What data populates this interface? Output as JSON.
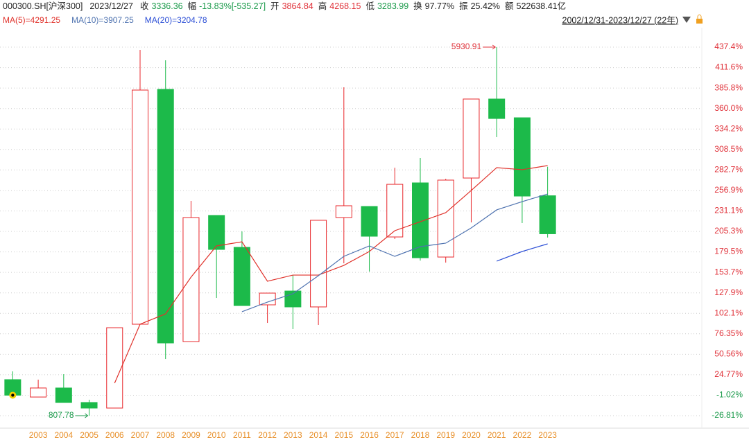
{
  "chart_data": {
    "type": "candlestick",
    "header": {
      "code": "000300.SH[沪深300]",
      "date": "2023/12/27",
      "items": [
        {
          "label": "收",
          "value": "3336.36"
        },
        {
          "label": "幅",
          "value": "-13.83%[-535.27]"
        },
        {
          "label": "开",
          "value": "3864.84"
        },
        {
          "label": "高",
          "value": "4268.15"
        },
        {
          "label": "低",
          "value": "3283.99"
        },
        {
          "label": "换",
          "value": "97.77%"
        },
        {
          "label": "振",
          "value": "25.42%"
        },
        {
          "label": "额",
          "value": "522638.41亿"
        }
      ],
      "range": "2002/12/31-2023/12/27 (22年)"
    },
    "categories": [
      null,
      "2003",
      "2004",
      "2005",
      "2006",
      "2007",
      "2008",
      "2009",
      "2010",
      "2011",
      "2012",
      "2013",
      "2014",
      "2015",
      "2016",
      "2017",
      "2018",
      "2019",
      "2020",
      "2021",
      "2022",
      "2023"
    ],
    "open": [
      18.6,
      -3.3,
      8.1,
      -10.2,
      -17.2,
      88.4,
      384.2,
      66.5,
      225.4,
      185.2,
      112.8,
      130.2,
      110.2,
      222.7,
      236.7,
      198.3,
      266.4,
      173.0,
      272.5,
      372.0,
      348.4,
      250.2
    ],
    "high": [
      29.0,
      18.6,
      25.5,
      -6.7,
      84.0,
      433.9,
      420.8,
      243.7,
      225.4,
      205.3,
      127.6,
      150.3,
      219.3,
      386.8,
      236.7,
      285.6,
      297.8,
      271.6,
      372.0,
      437.4,
      348.4,
      286.7
    ],
    "low": [
      -2.4,
      -3.3,
      -10.2,
      -26.8,
      -17.2,
      88.4,
      44.7,
      66.5,
      121.5,
      111.9,
      90.1,
      82.3,
      87.5,
      165.1,
      154.7,
      195.7,
      168.6,
      166.0,
      216.6,
      324.0,
      215.8,
      197.6
    ],
    "close": [
      -1.0,
      8.1,
      -10.2,
      -17.2,
      84.0,
      383.3,
      64.8,
      222.7,
      182.6,
      111.9,
      127.6,
      110.2,
      219.3,
      237.6,
      199.2,
      264.6,
      172.1,
      269.9,
      372.0,
      347.5,
      249.8,
      202.3
    ],
    "up_color": "#e8262a",
    "down_color": "#1cba4a",
    "series": [
      {
        "name": "MA(5)=4291.25",
        "color": "#e0322b",
        "values": [
          null,
          null,
          null,
          null,
          14.2,
          88.4,
          101.4,
          147.7,
          187.0,
          192.2,
          142.5,
          150.3,
          150.3,
          162.5,
          180.0,
          206.2,
          217.5,
          228.9,
          256.8,
          285.6,
          283.0,
          288.2
        ]
      },
      {
        "name": "MA(10)=3907.25",
        "color": "#4f73b0",
        "values": [
          null,
          null,
          null,
          null,
          null,
          null,
          null,
          null,
          null,
          104.1,
          116.3,
          126.8,
          149.5,
          173.9,
          187.0,
          173.9,
          186.1,
          190.5,
          209.7,
          232.4,
          242.8,
          252.4
        ]
      },
      {
        "name": "MA(20)=3204.78",
        "color": "#2c4fd6",
        "values": [
          null,
          null,
          null,
          null,
          null,
          null,
          null,
          null,
          null,
          null,
          null,
          null,
          null,
          null,
          null,
          null,
          null,
          null,
          null,
          167.8,
          180.0,
          189.6
        ]
      }
    ],
    "annotations": [
      {
        "text": "5930.91"
      },
      {
        "text": "807.78"
      }
    ],
    "ylim": [
      -42.5,
      466.2
    ],
    "yticks": [
      {
        "value": 437.4,
        "label": "437.4%"
      },
      {
        "value": 411.6,
        "label": "411.6%"
      },
      {
        "value": 385.8,
        "label": "385.8%"
      },
      {
        "value": 360.0,
        "label": "360.0%"
      },
      {
        "value": 334.2,
        "label": "334.2%"
      },
      {
        "value": 308.5,
        "label": "308.5%"
      },
      {
        "value": 282.7,
        "label": "282.7%"
      },
      {
        "value": 256.9,
        "label": "256.9%"
      },
      {
        "value": 231.1,
        "label": "231.1%"
      },
      {
        "value": 205.3,
        "label": "205.3%"
      },
      {
        "value": 179.5,
        "label": "179.5%"
      },
      {
        "value": 153.7,
        "label": "153.7%"
      },
      {
        "value": 127.9,
        "label": "127.9%"
      },
      {
        "value": 102.1,
        "label": "102.1%"
      },
      {
        "value": 76.35,
        "label": "76.35%"
      },
      {
        "value": 50.56,
        "label": "50.56%"
      },
      {
        "value": 24.77,
        "label": "24.77%"
      },
      {
        "value": -1.02,
        "label": "-1.02%"
      },
      {
        "value": -26.81,
        "label": "-26.81%"
      }
    ],
    "grid": true
  }
}
